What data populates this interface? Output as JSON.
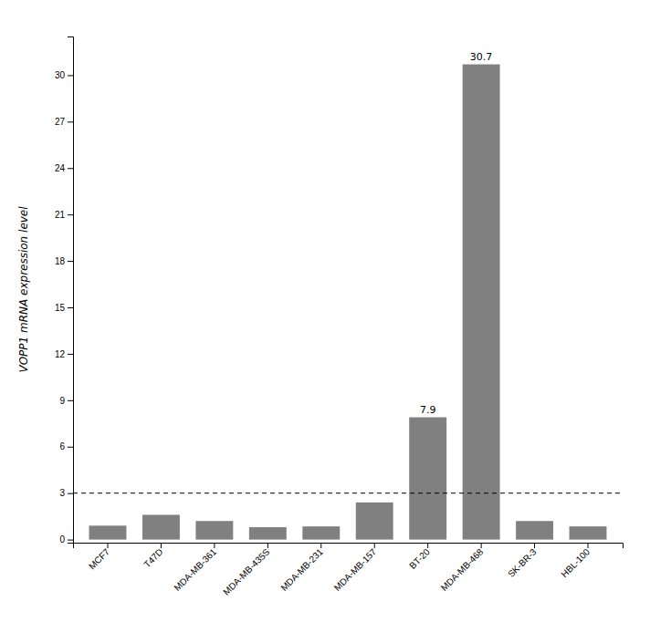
{
  "chart_data": {
    "type": "bar",
    "categories": [
      "MCF7",
      "T47D",
      "MDA-MB-361",
      "MDA-MB-435S",
      "MDA-MB-231",
      "MDA-MB-157",
      "BT-20",
      "MDA-MB-468",
      "SK-BR-3",
      "HBL-100"
    ],
    "values": [
      0.9,
      1.6,
      1.2,
      0.8,
      0.85,
      2.4,
      7.9,
      30.7,
      1.2,
      0.85
    ],
    "color": "#808080",
    "y_label": "VOPP1 mRNA expression level",
    "ylim": [
      -0.2,
      32.5
    ],
    "yticks": [
      0,
      3,
      6,
      9,
      12,
      15,
      18,
      21,
      24,
      27,
      30
    ],
    "grid": false,
    "reference_lines": [
      {
        "y": 3,
        "line_style": "dashed"
      }
    ],
    "annotations": [
      {
        "x": "BT-20",
        "y": 7.9,
        "text": "7.9"
      },
      {
        "x": "MDA-MB-468",
        "y": 30.7,
        "text": "30.7"
      }
    ]
  }
}
